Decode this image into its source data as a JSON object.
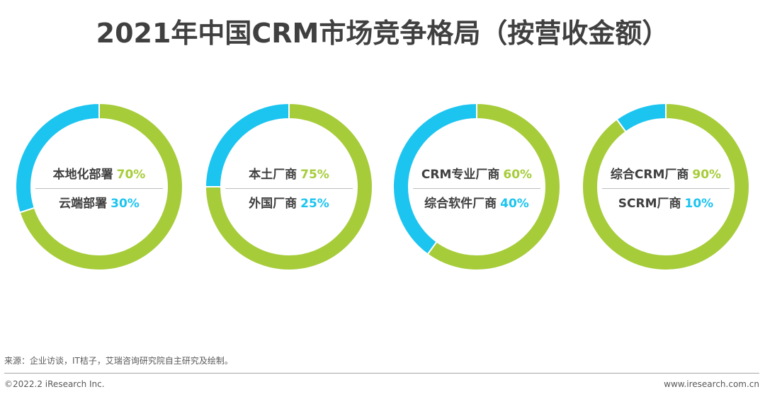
{
  "title": "2021年中国CRM市场竞争格局（按营收金额）",
  "colors": {
    "green": "#A6CC3A",
    "blue": "#1CC4F0"
  },
  "chart_data": [
    {
      "type": "pie",
      "slices": [
        {
          "label": "本地化部署",
          "value": 70,
          "pct_text": "70%",
          "color": "green"
        },
        {
          "label": "云端部署",
          "value": 30,
          "pct_text": "30%",
          "color": "blue"
        }
      ]
    },
    {
      "type": "pie",
      "slices": [
        {
          "label": "本土厂商",
          "value": 75,
          "pct_text": "75%",
          "color": "green"
        },
        {
          "label": "外国厂商",
          "value": 25,
          "pct_text": "25%",
          "color": "blue"
        }
      ]
    },
    {
      "type": "pie",
      "slices": [
        {
          "label": "CRM专业厂商",
          "value": 60,
          "pct_text": "60%",
          "color": "green"
        },
        {
          "label": "综合软件厂商",
          "value": 40,
          "pct_text": "40%",
          "color": "blue"
        }
      ]
    },
    {
      "type": "pie",
      "slices": [
        {
          "label": "综合CRM厂商",
          "value": 90,
          "pct_text": "90%",
          "color": "green"
        },
        {
          "label": "SCRM厂商",
          "value": 10,
          "pct_text": "10%",
          "color": "blue"
        }
      ]
    }
  ],
  "footer": {
    "source": "来源：企业访谈，IT桔子，艾瑞咨询研究院自主研究及绘制。",
    "copyright": "©2022.2 iResearch Inc.",
    "website": "www.iresearch.com.cn"
  }
}
